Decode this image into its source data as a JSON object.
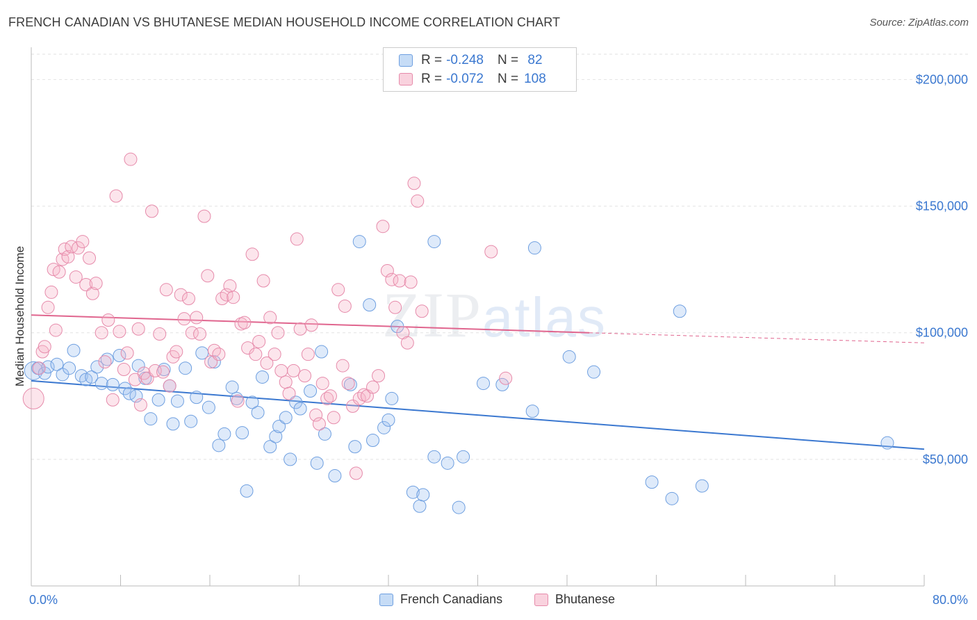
{
  "title": "FRENCH CANADIAN VS BHUTANESE MEDIAN HOUSEHOLD INCOME CORRELATION CHART",
  "source": "Source: ZipAtlas.com",
  "watermark": {
    "zip": "ZIP",
    "atlas": "atlas"
  },
  "legend": {
    "rows": [
      {
        "r_label": "R =",
        "r_value": "-0.248",
        "n_label": "N =",
        "n_value": " 82"
      },
      {
        "r_label": "R =",
        "r_value": "-0.072",
        "n_label": "N =",
        "n_value": "108"
      }
    ]
  },
  "bottom_legend": {
    "french": "French Canadians",
    "bhutanese": "Bhutanese"
  },
  "colors": {
    "blue": "#3b78d0",
    "blue_fill": "rgba(160,196,240,0.35)",
    "blue_stroke": "#6e9fe0",
    "pink": "#e0658e",
    "pink_fill": "rgba(245,180,200,0.35)",
    "pink_stroke": "#e68aaa",
    "grid": "#e2e2e2"
  },
  "chart_data": {
    "type": "scatter",
    "title": "FRENCH CANADIAN VS BHUTANESE MEDIAN HOUSEHOLD INCOME CORRELATION CHART",
    "xlabel": "",
    "ylabel": "Median Household Income",
    "xlim": [
      0,
      80
    ],
    "ylim": [
      0,
      210000
    ],
    "x_tick_labels": [
      "0.0%",
      "80.0%"
    ],
    "y_ticks": [
      50000,
      100000,
      150000,
      200000
    ],
    "y_tick_labels": [
      "$50,000",
      "$100,000",
      "$150,000",
      "$200,000"
    ],
    "grid": true,
    "legend_position": "top-center",
    "series": [
      {
        "name": "French Canadians",
        "color": "#3b78d0",
        "trend": {
          "x0": 0,
          "y0": 81000,
          "x1": 80,
          "y1": 54000
        },
        "points": [
          [
            0.2,
            85000
          ],
          [
            0.6,
            86000
          ],
          [
            1.2,
            84000
          ],
          [
            1.5,
            86500
          ],
          [
            2.3,
            87500
          ],
          [
            2.8,
            83500
          ],
          [
            3.4,
            86000
          ],
          [
            3.8,
            93000
          ],
          [
            4.5,
            83000
          ],
          [
            4.9,
            81500
          ],
          [
            5.4,
            82500
          ],
          [
            5.9,
            86500
          ],
          [
            6.3,
            80000
          ],
          [
            6.8,
            89500
          ],
          [
            7.3,
            79500
          ],
          [
            7.9,
            91000
          ],
          [
            8.4,
            78000
          ],
          [
            8.8,
            76000
          ],
          [
            9.4,
            75000
          ],
          [
            9.6,
            87000
          ],
          [
            10.2,
            82000
          ],
          [
            10.7,
            66000
          ],
          [
            11.4,
            73500
          ],
          [
            11.9,
            85500
          ],
          [
            12.4,
            79000
          ],
          [
            12.7,
            64000
          ],
          [
            13.1,
            73000
          ],
          [
            13.8,
            86000
          ],
          [
            14.3,
            65000
          ],
          [
            14.8,
            74500
          ],
          [
            15.3,
            92000
          ],
          [
            15.9,
            70500
          ],
          [
            16.4,
            88500
          ],
          [
            16.8,
            55500
          ],
          [
            17.3,
            60000
          ],
          [
            18.0,
            78500
          ],
          [
            18.4,
            74000
          ],
          [
            18.9,
            60500
          ],
          [
            19.3,
            37500
          ],
          [
            19.8,
            72500
          ],
          [
            20.3,
            68500
          ],
          [
            20.7,
            82500
          ],
          [
            21.4,
            55000
          ],
          [
            21.9,
            59000
          ],
          [
            22.2,
            63000
          ],
          [
            22.8,
            66500
          ],
          [
            23.2,
            50000
          ],
          [
            23.7,
            72500
          ],
          [
            24.1,
            70000
          ],
          [
            25.0,
            77000
          ],
          [
            25.6,
            48500
          ],
          [
            26.3,
            60000
          ],
          [
            26.0,
            92500
          ],
          [
            27.2,
            43500
          ],
          [
            28.6,
            79500
          ],
          [
            29.0,
            55000
          ],
          [
            29.4,
            136000
          ],
          [
            30.3,
            111000
          ],
          [
            30.6,
            57500
          ],
          [
            31.6,
            62500
          ],
          [
            32.3,
            74000
          ],
          [
            32.0,
            65500
          ],
          [
            32.8,
            102500
          ],
          [
            34.2,
            37000
          ],
          [
            34.8,
            31500
          ],
          [
            35.1,
            36000
          ],
          [
            36.1,
            51000
          ],
          [
            36.1,
            136000
          ],
          [
            37.3,
            48500
          ],
          [
            38.3,
            31000
          ],
          [
            38.7,
            51000
          ],
          [
            40.5,
            80000
          ],
          [
            42.2,
            79500
          ],
          [
            44.9,
            69000
          ],
          [
            45.1,
            133500
          ],
          [
            48.2,
            90500
          ],
          [
            50.4,
            84500
          ],
          [
            55.6,
            41000
          ],
          [
            57.4,
            34500
          ],
          [
            58.1,
            108500
          ],
          [
            60.1,
            39500
          ],
          [
            76.7,
            56500
          ]
        ]
      },
      {
        "name": "Bhutanese",
        "color": "#e0658e",
        "trend": {
          "x0": 0,
          "y0": 107000,
          "x1": 50,
          "y1": 100000
        },
        "trend_dashed": {
          "x0": 50,
          "y0": 100000,
          "x1": 80,
          "y1": 96000
        },
        "points": [
          [
            0.2,
            74000
          ],
          [
            0.7,
            86000
          ],
          [
            1.0,
            92500
          ],
          [
            1.2,
            94500
          ],
          [
            1.5,
            110000
          ],
          [
            1.8,
            116000
          ],
          [
            2.0,
            125000
          ],
          [
            2.2,
            101000
          ],
          [
            2.5,
            124000
          ],
          [
            2.8,
            129000
          ],
          [
            3.0,
            133000
          ],
          [
            3.3,
            130000
          ],
          [
            3.6,
            134000
          ],
          [
            4.0,
            122000
          ],
          [
            4.2,
            133500
          ],
          [
            4.6,
            136000
          ],
          [
            4.9,
            119000
          ],
          [
            5.2,
            129500
          ],
          [
            5.5,
            115500
          ],
          [
            5.8,
            119500
          ],
          [
            6.3,
            100000
          ],
          [
            6.6,
            88500
          ],
          [
            6.9,
            105000
          ],
          [
            7.3,
            73500
          ],
          [
            7.6,
            154000
          ],
          [
            7.9,
            100500
          ],
          [
            8.3,
            85500
          ],
          [
            8.6,
            92000
          ],
          [
            8.9,
            168500
          ],
          [
            9.3,
            81500
          ],
          [
            9.6,
            101500
          ],
          [
            9.8,
            71500
          ],
          [
            10.1,
            84000
          ],
          [
            10.4,
            82000
          ],
          [
            10.8,
            148000
          ],
          [
            11.1,
            85000
          ],
          [
            11.5,
            99500
          ],
          [
            11.8,
            84500
          ],
          [
            12.1,
            117000
          ],
          [
            12.4,
            79000
          ],
          [
            12.7,
            90500
          ],
          [
            13.0,
            92500
          ],
          [
            13.4,
            115000
          ],
          [
            13.7,
            105500
          ],
          [
            14.1,
            113500
          ],
          [
            14.4,
            100000
          ],
          [
            14.8,
            106000
          ],
          [
            15.1,
            99500
          ],
          [
            15.5,
            146000
          ],
          [
            15.8,
            122500
          ],
          [
            16.1,
            88500
          ],
          [
            16.4,
            93000
          ],
          [
            16.8,
            91500
          ],
          [
            17.1,
            113500
          ],
          [
            17.5,
            115000
          ],
          [
            17.8,
            118500
          ],
          [
            18.1,
            114000
          ],
          [
            18.5,
            73000
          ],
          [
            18.8,
            103500
          ],
          [
            19.1,
            104000
          ],
          [
            19.4,
            94000
          ],
          [
            19.8,
            131000
          ],
          [
            20.1,
            91500
          ],
          [
            20.4,
            96500
          ],
          [
            20.8,
            120500
          ],
          [
            21.1,
            88000
          ],
          [
            21.4,
            106000
          ],
          [
            21.8,
            91500
          ],
          [
            22.1,
            100000
          ],
          [
            22.4,
            85000
          ],
          [
            22.8,
            80500
          ],
          [
            23.1,
            76000
          ],
          [
            23.5,
            85000
          ],
          [
            23.8,
            137000
          ],
          [
            24.1,
            101500
          ],
          [
            24.5,
            83000
          ],
          [
            24.8,
            91500
          ],
          [
            25.1,
            103000
          ],
          [
            25.5,
            67500
          ],
          [
            25.8,
            64000
          ],
          [
            26.1,
            80000
          ],
          [
            26.5,
            74000
          ],
          [
            26.8,
            75000
          ],
          [
            27.1,
            66500
          ],
          [
            27.5,
            117000
          ],
          [
            27.9,
            87000
          ],
          [
            28.1,
            110500
          ],
          [
            28.4,
            80000
          ],
          [
            28.8,
            71000
          ],
          [
            29.1,
            44500
          ],
          [
            29.4,
            74000
          ],
          [
            29.8,
            75500
          ],
          [
            30.1,
            75000
          ],
          [
            30.6,
            78500
          ],
          [
            31.1,
            83000
          ],
          [
            31.5,
            142000
          ],
          [
            31.9,
            124500
          ],
          [
            32.3,
            121000
          ],
          [
            32.6,
            110000
          ],
          [
            33.0,
            120500
          ],
          [
            33.3,
            100000
          ],
          [
            33.7,
            96000
          ],
          [
            34.0,
            120000
          ],
          [
            34.3,
            159000
          ],
          [
            34.6,
            152000
          ],
          [
            35.0,
            108500
          ],
          [
            41.2,
            132000
          ],
          [
            42.5,
            82000
          ]
        ]
      }
    ]
  }
}
